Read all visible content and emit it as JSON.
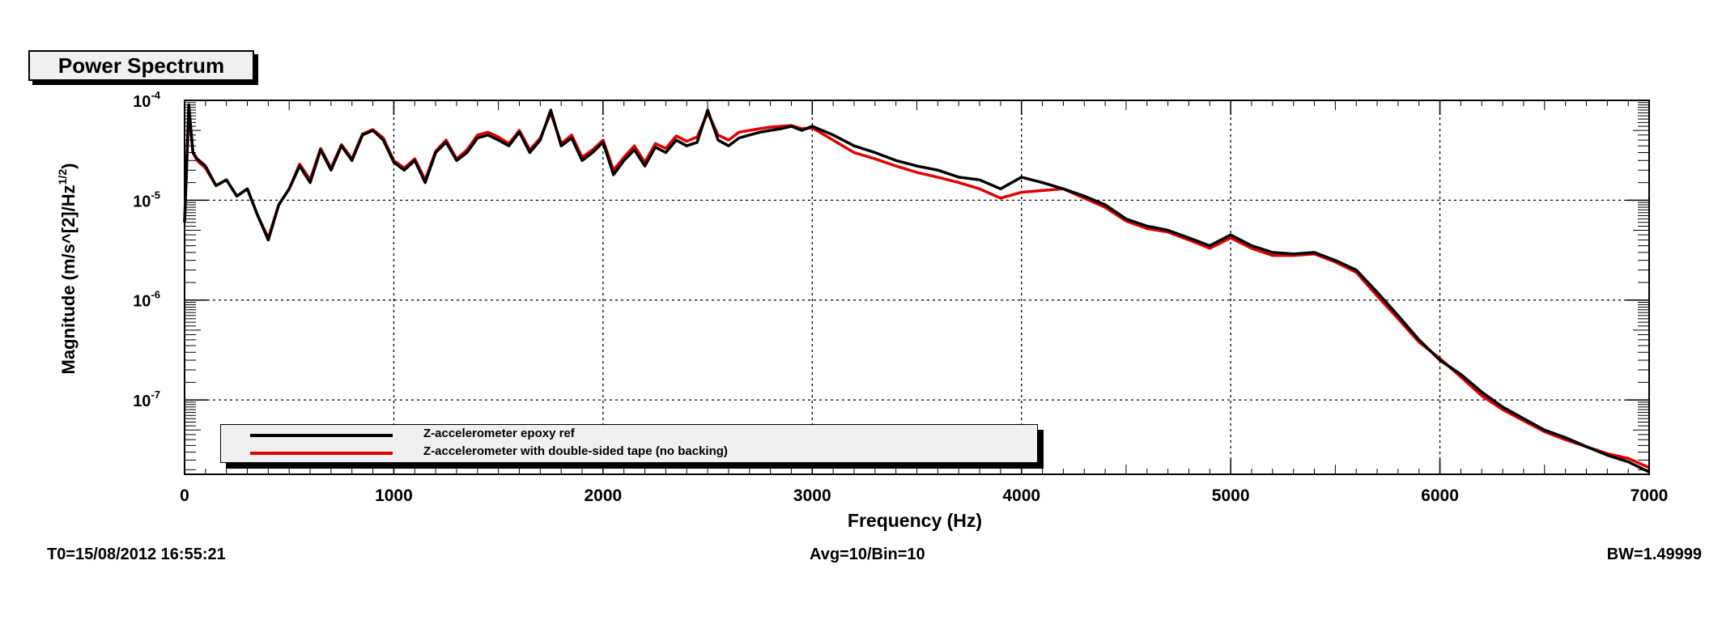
{
  "title": "Power Spectrum",
  "footer": {
    "t0": "T0=15/08/2012 16:55:21",
    "avg": "Avg=10/Bin=10",
    "bw": "BW=1.49999"
  },
  "chart_data": {
    "type": "line",
    "xlabel": "Frequency (Hz)",
    "ylabel": "Magnitude (m/s^[2]/Hz",
    "ylabel_sup": "1/2",
    "ylabel_end": ")",
    "xlim": [
      0,
      7000
    ],
    "ylim": [
      1.8e-08,
      0.0001
    ],
    "yscale": "log",
    "grid": true,
    "legend_position": "bottom-left",
    "x_ticks": [
      "0",
      "1000",
      "2000",
      "3000",
      "4000",
      "5000",
      "6000",
      "7000"
    ],
    "y_ticks": [
      {
        "base": "10",
        "exp": "-4"
      },
      {
        "base": "10",
        "exp": "-5"
      },
      {
        "base": "10",
        "exp": "-6"
      },
      {
        "base": "10",
        "exp": "-7"
      }
    ],
    "series": [
      {
        "name": "Z-accelerometer epoxy ref",
        "color": "#000000",
        "x": [
          0,
          20,
          40,
          60,
          100,
          150,
          200,
          250,
          300,
          350,
          400,
          450,
          500,
          550,
          600,
          650,
          700,
          750,
          800,
          850,
          900,
          950,
          1000,
          1050,
          1100,
          1150,
          1200,
          1250,
          1300,
          1350,
          1400,
          1450,
          1500,
          1550,
          1600,
          1650,
          1700,
          1750,
          1800,
          1850,
          1900,
          1950,
          2000,
          2050,
          2100,
          2150,
          2200,
          2250,
          2300,
          2350,
          2400,
          2450,
          2500,
          2550,
          2600,
          2650,
          2700,
          2750,
          2800,
          2850,
          2900,
          2950,
          3000,
          3100,
          3200,
          3300,
          3400,
          3500,
          3600,
          3700,
          3800,
          3900,
          4000,
          4100,
          4200,
          4300,
          4400,
          4500,
          4600,
          4700,
          4800,
          4900,
          5000,
          5100,
          5200,
          5300,
          5400,
          5500,
          5600,
          5700,
          5800,
          5900,
          6000,
          6100,
          6200,
          6300,
          6400,
          6500,
          6600,
          6700,
          6800,
          6900,
          7000
        ],
        "values": [
          6e-06,
          9e-05,
          3e-05,
          2.6e-05,
          2.2e-05,
          1.4e-05,
          1.6e-05,
          1.1e-05,
          1.3e-05,
          7e-06,
          4e-06,
          9e-06,
          1.3e-05,
          2.2e-05,
          1.5e-05,
          3.2e-05,
          2e-05,
          3.5e-05,
          2.5e-05,
          4.5e-05,
          5e-05,
          4e-05,
          2.4e-05,
          2e-05,
          2.5e-05,
          1.5e-05,
          3e-05,
          3.8e-05,
          2.5e-05,
          3e-05,
          4.2e-05,
          4.5e-05,
          4e-05,
          3.5e-05,
          4.8e-05,
          3e-05,
          4e-05,
          8e-05,
          3.5e-05,
          4.2e-05,
          2.5e-05,
          3e-05,
          3.8e-05,
          1.8e-05,
          2.5e-05,
          3.2e-05,
          2.2e-05,
          3.4e-05,
          3e-05,
          4e-05,
          3.5e-05,
          3.8e-05,
          8e-05,
          4e-05,
          3.5e-05,
          4.2e-05,
          4.5e-05,
          4.8e-05,
          5e-05,
          5.2e-05,
          5.5e-05,
          5e-05,
          5.5e-05,
          4.5e-05,
          3.5e-05,
          3e-05,
          2.5e-05,
          2.2e-05,
          2e-05,
          1.7e-05,
          1.6e-05,
          1.3e-05,
          1.7e-05,
          1.5e-05,
          1.3e-05,
          1.1e-05,
          9e-06,
          6.5e-06,
          5.5e-06,
          5e-06,
          4.2e-06,
          3.5e-06,
          4.5e-06,
          3.5e-06,
          3e-06,
          2.9e-06,
          3e-06,
          2.5e-06,
          2e-06,
          1.2e-06,
          7e-07,
          4e-07,
          2.5e-07,
          1.8e-07,
          1.2e-07,
          8.5e-08,
          6.5e-08,
          5e-08,
          4.2e-08,
          3.4e-08,
          2.8e-08,
          2.4e-08,
          1.9e-08
        ]
      },
      {
        "name": "Z-accelerometer with double-sided tape (no backing)",
        "color": "#e00000",
        "x": [
          0,
          20,
          40,
          60,
          100,
          150,
          200,
          250,
          300,
          350,
          400,
          450,
          500,
          550,
          600,
          650,
          700,
          750,
          800,
          850,
          900,
          950,
          1000,
          1050,
          1100,
          1150,
          1200,
          1250,
          1300,
          1350,
          1400,
          1450,
          1500,
          1550,
          1600,
          1650,
          1700,
          1750,
          1800,
          1850,
          1900,
          1950,
          2000,
          2050,
          2100,
          2150,
          2200,
          2250,
          2300,
          2350,
          2400,
          2450,
          2500,
          2550,
          2600,
          2650,
          2700,
          2750,
          2800,
          2850,
          2900,
          2950,
          3000,
          3100,
          3200,
          3300,
          3400,
          3500,
          3600,
          3700,
          3800,
          3900,
          4000,
          4100,
          4200,
          4300,
          4400,
          4500,
          4600,
          4700,
          4800,
          4900,
          5000,
          5100,
          5200,
          5300,
          5400,
          5500,
          5600,
          5700,
          5800,
          5900,
          6000,
          6100,
          6200,
          6300,
          6400,
          6500,
          6600,
          6700,
          6800,
          6900,
          7000
        ],
        "values": [
          6e-06,
          8e-05,
          3e-05,
          2.5e-05,
          2.1e-05,
          1.4e-05,
          1.6e-05,
          1.1e-05,
          1.3e-05,
          7e-06,
          4.2e-06,
          9e-06,
          1.3e-05,
          2.3e-05,
          1.6e-05,
          3.3e-05,
          2.1e-05,
          3.6e-05,
          2.6e-05,
          4.6e-05,
          5.1e-05,
          4.2e-05,
          2.5e-05,
          2.1e-05,
          2.6e-05,
          1.6e-05,
          3.1e-05,
          4e-05,
          2.6e-05,
          3.2e-05,
          4.5e-05,
          4.8e-05,
          4.3e-05,
          3.7e-05,
          5e-05,
          3.2e-05,
          4.2e-05,
          7.5e-05,
          3.7e-05,
          4.5e-05,
          2.7e-05,
          3.2e-05,
          4e-05,
          2e-05,
          2.7e-05,
          3.5e-05,
          2.4e-05,
          3.7e-05,
          3.3e-05,
          4.4e-05,
          3.9e-05,
          4.3e-05,
          7.5e-05,
          4.5e-05,
          4e-05,
          4.8e-05,
          5e-05,
          5.2e-05,
          5.4e-05,
          5.5e-05,
          5.6e-05,
          5.2e-05,
          5.3e-05,
          4e-05,
          3e-05,
          2.6e-05,
          2.2e-05,
          1.9e-05,
          1.7e-05,
          1.5e-05,
          1.3e-05,
          1.05e-05,
          1.2e-05,
          1.25e-05,
          1.3e-05,
          1.05e-05,
          8.5e-06,
          6.2e-06,
          5.2e-06,
          4.8e-06,
          4e-06,
          3.3e-06,
          4.2e-06,
          3.3e-06,
          2.8e-06,
          2.8e-06,
          2.9e-06,
          2.4e-06,
          1.9e-06,
          1.1e-06,
          6.5e-07,
          3.8e-07,
          2.6e-07,
          1.7e-07,
          1.1e-07,
          8e-08,
          6.2e-08,
          4.8e-08,
          4e-08,
          3.4e-08,
          2.9e-08,
          2.6e-08,
          2.1e-08
        ]
      }
    ]
  }
}
